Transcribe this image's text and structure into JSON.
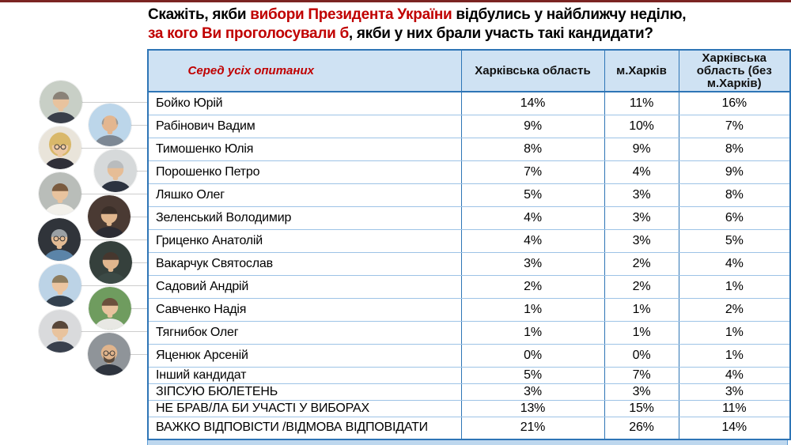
{
  "title": {
    "l1_black1": "Скажіть, якби ",
    "l1_red": "вибори Президента України",
    "l1_black2": " відбулись у найближчу неділю,",
    "l2_red": "за кого Ви проголосували б",
    "l2_black": ", якби у них брали участь такі кандидати?"
  },
  "survey_table": {
    "filter_label": "Серед усіх опитаних",
    "columns": [
      "Харківська область",
      "м.Харків",
      "Харківська область (без м.Харків)"
    ],
    "rows": [
      {
        "name": "Бойко Юрій",
        "values": [
          "14%",
          "11%",
          "16%"
        ]
      },
      {
        "name": "Рабінович Вадим",
        "values": [
          "9%",
          "10%",
          "7%"
        ]
      },
      {
        "name": "Тимошенко Юлія",
        "values": [
          "8%",
          "9%",
          "8%"
        ]
      },
      {
        "name": "Порошенко Петро",
        "values": [
          "7%",
          "4%",
          "9%"
        ]
      },
      {
        "name": "Ляшко Олег",
        "values": [
          "5%",
          "3%",
          "8%"
        ]
      },
      {
        "name": "Зеленський Володимир",
        "values": [
          "4%",
          "3%",
          "6%"
        ]
      },
      {
        "name": "Гриценко Анатолій",
        "values": [
          "4%",
          "3%",
          "5%"
        ]
      },
      {
        "name": "Вакарчук Святослав",
        "values": [
          "3%",
          "2%",
          "4%"
        ]
      },
      {
        "name": "Садовий Андрій",
        "values": [
          "2%",
          "2%",
          "1%"
        ]
      },
      {
        "name": "Савченко Надія",
        "values": [
          "1%",
          "1%",
          "2%"
        ]
      },
      {
        "name": "Тягнибок Олег",
        "values": [
          "1%",
          "1%",
          "1%"
        ]
      },
      {
        "name": "Яценюк Арсеній",
        "values": [
          "0%",
          "0%",
          "1%"
        ]
      },
      {
        "name": "Інший кандидат",
        "values": [
          "5%",
          "7%",
          "4%"
        ]
      },
      {
        "name": "ЗІПСУЮ БЮЛЕТЕНЬ",
        "values": [
          "3%",
          "3%",
          "3%"
        ]
      },
      {
        "name": "НЕ БРАВ/ЛА БИ УЧАСТІ У ВИБОРАХ",
        "values": [
          "13%",
          "15%",
          "11%"
        ]
      },
      {
        "name": "ВАЖКО ВІДПОВІСТИ /ВІДМОВА ВІДПОВІДАТИ",
        "values": [
          "21%",
          "26%",
          "14%"
        ]
      }
    ]
  },
  "photos": [
    {
      "label": "Бойко Юрій",
      "style": "cap",
      "bg": "#c8cfc6",
      "hair": "#8a8278",
      "shirt": "#3a3f4a",
      "skin": "#e8c39e",
      "glasses": false,
      "beard": false
    },
    {
      "label": "Рабінович Вадим",
      "style": "sides",
      "bg": "#bcd6ea",
      "hair": "#9a9a98",
      "shirt": "#7d8894",
      "skin": "#e3b68f",
      "glasses": false,
      "beard": false
    },
    {
      "label": "Тимошенко Юлія",
      "style": "female",
      "bg": "#e9e4da",
      "hair": "#d9b86a",
      "shirt": "#2f2f38",
      "skin": "#edc9a4",
      "glasses": true,
      "beard": false
    },
    {
      "label": "Порошенко Петро",
      "style": "cap",
      "bg": "#d6d9da",
      "hair": "#b9bcbe",
      "shirt": "#2c3340",
      "skin": "#e6bd96",
      "glasses": false,
      "beard": false
    },
    {
      "label": "Ляшко Олег",
      "style": "cap",
      "bg": "#b9bdb9",
      "hair": "#7a5b3f",
      "shirt": "#f2f0ea",
      "skin": "#e8c39e",
      "glasses": false,
      "beard": false
    },
    {
      "label": "Зеленський Володимир",
      "style": "cap",
      "bg": "#4a3a33",
      "hair": "#3a2e28",
      "shirt": "#2b2b33",
      "skin": "#e0b68e",
      "glasses": false,
      "beard": false
    },
    {
      "label": "Гриценко Анатолій",
      "style": "cap",
      "bg": "#30343a",
      "hair": "#9aa0a4",
      "shirt": "#5b84a8",
      "skin": "#e3bb94",
      "glasses": true,
      "beard": false
    },
    {
      "label": "Вакарчук Святослав",
      "style": "cap",
      "bg": "#35403c",
      "hair": "#46372e",
      "shirt": "#3c4a46",
      "skin": "#e0b68e",
      "glasses": false,
      "beard": false
    },
    {
      "label": "Садовий Андрій",
      "style": "cap",
      "bg": "#bcd3e6",
      "hair": "#8d7c5e",
      "shirt": "#33404e",
      "skin": "#ecc5a0",
      "glasses": false,
      "beard": false
    },
    {
      "label": "Савченко Надія",
      "style": "cap",
      "bg": "#6f9c5f",
      "hair": "#6b503c",
      "shirt": "#e8e8e4",
      "skin": "#e8c39e",
      "glasses": false,
      "beard": false
    },
    {
      "label": "Тягнибок Олег",
      "style": "cap",
      "bg": "#d9dadc",
      "hair": "#574639",
      "shirt": "#39404d",
      "skin": "#e8c39e",
      "glasses": false,
      "beard": false
    },
    {
      "label": "Яценюк Арсеній",
      "style": "bald",
      "bg": "#8f9499",
      "hair": "#5a4a3c",
      "shirt": "#2e343e",
      "skin": "#e0b48c",
      "glasses": true,
      "beard": true
    }
  ],
  "colors": {
    "accent_red": "#c00000",
    "top_bar": "#7b2422",
    "header_bg": "#cfe2f3",
    "border_strong": "#2e75b6",
    "border_light": "#9dc3e6",
    "footer_bg": "#bdd7ee"
  },
  "chart_data": {
    "type": "table",
    "title": "Скажіть, якби вибори Президента України відбулись у найближчу неділю, за кого Ви проголосували б, якби у них брали участь такі кандидати?",
    "group_label": "Серед усіх опитаних",
    "unit": "%",
    "categories": [
      "Бойко Юрій",
      "Рабінович Вадим",
      "Тимошенко Юлія",
      "Порошенко Петро",
      "Ляшко Олег",
      "Зеленський Володимир",
      "Гриценко Анатолій",
      "Вакарчук Святослав",
      "Садовий Андрій",
      "Савченко Надія",
      "Тягнибок Олег",
      "Яценюк Арсеній",
      "Інший кандидат",
      "ЗІПСУЮ БЮЛЕТЕНЬ",
      "НЕ БРАВ/ЛА БИ УЧАСТІ У ВИБОРАХ",
      "ВАЖКО ВІДПОВІСТИ /ВІДМОВА ВІДПОВІДАТИ"
    ],
    "series": [
      {
        "name": "Харківська область",
        "values": [
          14,
          9,
          8,
          7,
          5,
          4,
          4,
          3,
          2,
          1,
          1,
          0,
          5,
          3,
          13,
          21
        ]
      },
      {
        "name": "м.Харків",
        "values": [
          11,
          10,
          9,
          4,
          3,
          3,
          3,
          2,
          2,
          1,
          1,
          0,
          7,
          3,
          15,
          26
        ]
      },
      {
        "name": "Харківська область (без м.Харків)",
        "values": [
          16,
          7,
          8,
          9,
          8,
          6,
          5,
          4,
          1,
          2,
          1,
          1,
          4,
          3,
          11,
          14
        ]
      }
    ]
  }
}
